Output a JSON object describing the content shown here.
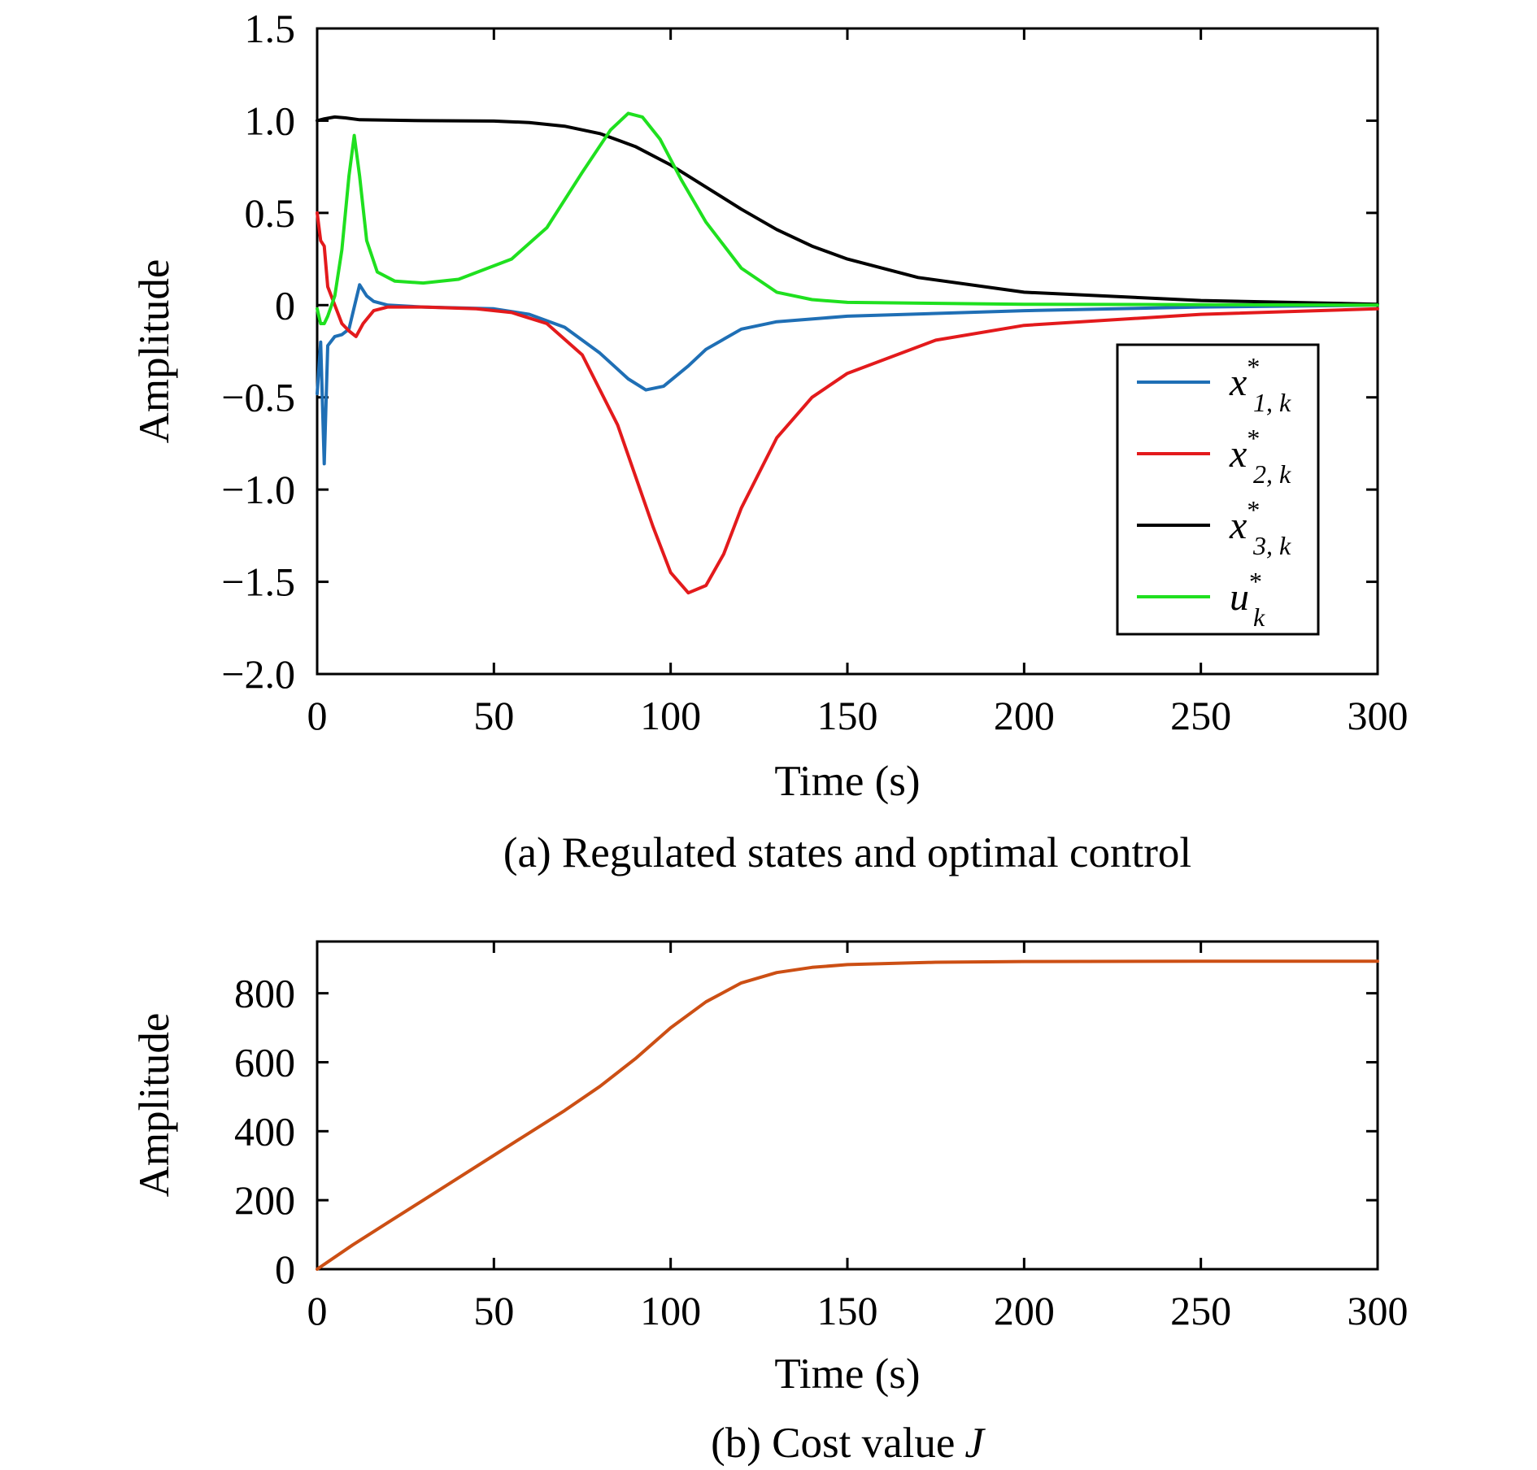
{
  "chart_data": [
    {
      "type": "line",
      "caption": "(a) Regulated states and optimal control",
      "xlabel": "Time (s)",
      "ylabel": "Amplitude",
      "xlim": [
        0,
        300
      ],
      "ylim": [
        -2.0,
        1.5
      ],
      "xticks": [
        "0",
        "50",
        "100",
        "150",
        "200",
        "250",
        "300"
      ],
      "yticks": [
        "−2.0",
        "−1.5",
        "−1.0",
        "−0.5",
        "0",
        "0.5",
        "1.0",
        "1.5"
      ],
      "grid": false,
      "legend_position": "right",
      "series": [
        {
          "name": "x*1,k",
          "legend": {
            "base": "x",
            "sup": "*",
            "sub": "1, k"
          },
          "color": "#1f6fb5",
          "points": [
            [
              0,
              -0.48
            ],
            [
              1,
              -0.2
            ],
            [
              2,
              -0.86
            ],
            [
              3,
              -0.22
            ],
            [
              5,
              -0.17
            ],
            [
              7,
              -0.16
            ],
            [
              9,
              -0.13
            ],
            [
              11,
              0.03
            ],
            [
              12,
              0.11
            ],
            [
              14,
              0.05
            ],
            [
              16,
              0.02
            ],
            [
              20,
              0.0
            ],
            [
              30,
              -0.01
            ],
            [
              50,
              -0.02
            ],
            [
              60,
              -0.05
            ],
            [
              70,
              -0.12
            ],
            [
              80,
              -0.26
            ],
            [
              88,
              -0.4
            ],
            [
              93,
              -0.46
            ],
            [
              98,
              -0.44
            ],
            [
              105,
              -0.33
            ],
            [
              110,
              -0.24
            ],
            [
              120,
              -0.13
            ],
            [
              130,
              -0.09
            ],
            [
              150,
              -0.06
            ],
            [
              200,
              -0.03
            ],
            [
              250,
              -0.01
            ],
            [
              300,
              0.0
            ]
          ]
        },
        {
          "name": "x*2,k",
          "legend": {
            "base": "x",
            "sup": "*",
            "sub": "2, k"
          },
          "color": "#e31a1c",
          "points": [
            [
              0,
              0.5
            ],
            [
              1,
              0.35
            ],
            [
              2,
              0.32
            ],
            [
              3,
              0.1
            ],
            [
              5,
              0.0
            ],
            [
              7,
              -0.1
            ],
            [
              9,
              -0.14
            ],
            [
              11,
              -0.17
            ],
            [
              13,
              -0.1
            ],
            [
              16,
              -0.03
            ],
            [
              20,
              -0.01
            ],
            [
              30,
              -0.01
            ],
            [
              45,
              -0.02
            ],
            [
              55,
              -0.04
            ],
            [
              65,
              -0.1
            ],
            [
              75,
              -0.27
            ],
            [
              85,
              -0.65
            ],
            [
              95,
              -1.2
            ],
            [
              100,
              -1.45
            ],
            [
              105,
              -1.56
            ],
            [
              110,
              -1.52
            ],
            [
              115,
              -1.35
            ],
            [
              120,
              -1.1
            ],
            [
              130,
              -0.72
            ],
            [
              140,
              -0.5
            ],
            [
              150,
              -0.37
            ],
            [
              175,
              -0.19
            ],
            [
              200,
              -0.11
            ],
            [
              250,
              -0.05
            ],
            [
              300,
              -0.02
            ]
          ]
        },
        {
          "name": "x*3,k",
          "legend": {
            "base": "x",
            "sup": "*",
            "sub": "3, k"
          },
          "color": "#000000",
          "points": [
            [
              0,
              1.0
            ],
            [
              2,
              1.01
            ],
            [
              5,
              1.02
            ],
            [
              8,
              1.015
            ],
            [
              12,
              1.005
            ],
            [
              30,
              1.0
            ],
            [
              50,
              0.998
            ],
            [
              60,
              0.99
            ],
            [
              70,
              0.97
            ],
            [
              80,
              0.93
            ],
            [
              90,
              0.86
            ],
            [
              100,
              0.76
            ],
            [
              110,
              0.64
            ],
            [
              120,
              0.52
            ],
            [
              130,
              0.41
            ],
            [
              140,
              0.32
            ],
            [
              150,
              0.25
            ],
            [
              170,
              0.15
            ],
            [
              200,
              0.07
            ],
            [
              250,
              0.025
            ],
            [
              300,
              0.005
            ]
          ]
        },
        {
          "name": "u*k",
          "legend": {
            "base": "u",
            "sup": "*",
            "sub": "k"
          },
          "color": "#1fe01f",
          "points": [
            [
              0,
              -0.02
            ],
            [
              1,
              -0.1
            ],
            [
              2,
              -0.1
            ],
            [
              3,
              -0.06
            ],
            [
              5,
              0.05
            ],
            [
              7,
              0.3
            ],
            [
              9,
              0.7
            ],
            [
              10.5,
              0.92
            ],
            [
              12,
              0.7
            ],
            [
              14,
              0.35
            ],
            [
              17,
              0.18
            ],
            [
              22,
              0.13
            ],
            [
              30,
              0.12
            ],
            [
              40,
              0.14
            ],
            [
              55,
              0.25
            ],
            [
              65,
              0.42
            ],
            [
              75,
              0.72
            ],
            [
              83,
              0.95
            ],
            [
              88,
              1.04
            ],
            [
              92,
              1.02
            ],
            [
              97,
              0.9
            ],
            [
              103,
              0.68
            ],
            [
              110,
              0.45
            ],
            [
              120,
              0.2
            ],
            [
              130,
              0.07
            ],
            [
              140,
              0.03
            ],
            [
              150,
              0.015
            ],
            [
              200,
              0.005
            ],
            [
              300,
              0.0
            ]
          ]
        }
      ]
    },
    {
      "type": "line",
      "caption": "(b) Cost value",
      "caption_italic": "J",
      "xlabel": "Time (s)",
      "ylabel": "Amplitude",
      "xlim": [
        0,
        300
      ],
      "ylim": [
        0,
        950
      ],
      "xticks": [
        "0",
        "50",
        "100",
        "150",
        "200",
        "250",
        "300"
      ],
      "yticks": [
        "0",
        "200",
        "400",
        "600",
        "800"
      ],
      "grid": false,
      "series": [
        {
          "color": "#cc4f14",
          "points": [
            [
              0,
              0
            ],
            [
              10,
              70
            ],
            [
              20,
              135
            ],
            [
              30,
              200
            ],
            [
              40,
              265
            ],
            [
              50,
              330
            ],
            [
              60,
              395
            ],
            [
              70,
              460
            ],
            [
              80,
              530
            ],
            [
              90,
              610
            ],
            [
              100,
              700
            ],
            [
              110,
              775
            ],
            [
              120,
              830
            ],
            [
              130,
              860
            ],
            [
              140,
              875
            ],
            [
              150,
              883
            ],
            [
              175,
              890
            ],
            [
              200,
              892
            ],
            [
              250,
              893
            ],
            [
              300,
              893
            ]
          ]
        }
      ]
    }
  ]
}
